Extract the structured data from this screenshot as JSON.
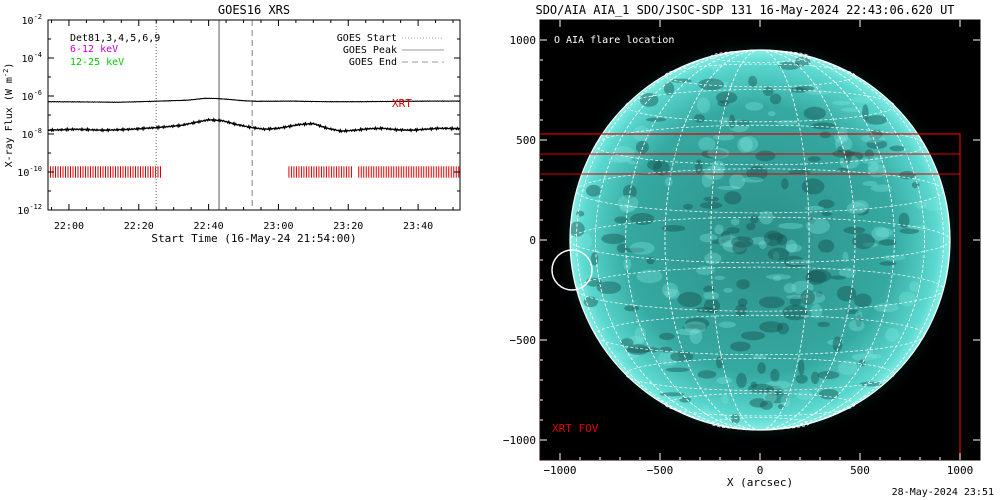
{
  "left_chart": {
    "title": "GOES16 XRS",
    "ylabel": "X-ray Flux (W m",
    "ylabel_sup": "-2",
    "ylabel_close": ")",
    "xlabel": "Start Time (16-May-24 21:54:00)",
    "y_ticks": [
      {
        "base": "10",
        "exp": "-2",
        "value": -2
      },
      {
        "base": "10",
        "exp": "-4",
        "value": -4
      },
      {
        "base": "10",
        "exp": "-6",
        "value": -6
      },
      {
        "base": "10",
        "exp": "-8",
        "value": -8
      },
      {
        "base": "10",
        "exp": "-10",
        "value": -10
      },
      {
        "base": "10",
        "exp": "-12",
        "value": -12
      }
    ],
    "x_ticks": [
      "22:00",
      "22:20",
      "22:40",
      "23:00",
      "23:20",
      "23:40"
    ],
    "labels_topleft": [
      {
        "text": "Det81,3,4,5,6,9",
        "color": "#000000"
      },
      {
        "text": "6-12 keV",
        "color": "#cc00cc"
      },
      {
        "text": "12-25 keV",
        "color": "#00cc00"
      }
    ],
    "legend": [
      {
        "text": "GOES Start",
        "style": "dotted"
      },
      {
        "text": "GOES Peak",
        "style": "solid"
      },
      {
        "text": "GOES End",
        "style": "dashed"
      }
    ],
    "xrt_label": "XRT",
    "colors": {
      "xrt": "#dd0000",
      "vline": "#aaaaaa"
    }
  },
  "chart_data": [
    {
      "type": "line",
      "title": "GOES16 XRS",
      "xlabel": "Start Time (16-May-24 21:54:00)",
      "ylabel": "X-ray Flux (W m-2)",
      "y_scale": "log",
      "xlim_minutes_after_start": [
        0,
        118
      ],
      "ylim_log10": [
        -12,
        -2
      ],
      "series": [
        {
          "x_minutes": [
            0,
            10,
            20,
            30,
            40,
            45,
            48,
            52,
            56,
            60,
            70,
            80,
            90,
            100,
            110,
            118
          ],
          "log10_flux": [
            -6.3,
            -6.31,
            -6.33,
            -6.28,
            -6.22,
            -6.12,
            -6.13,
            -6.18,
            -6.25,
            -6.28,
            -6.27,
            -6.3,
            -6.3,
            -6.28,
            -6.27,
            -6.27
          ]
        },
        {
          "x_minutes": [
            0,
            8,
            16,
            24,
            32,
            38,
            42,
            46,
            50,
            54,
            58,
            62,
            66,
            72,
            76,
            80,
            84,
            88,
            92,
            96,
            100,
            104,
            108,
            112,
            118
          ],
          "log10_flux": [
            -7.8,
            -7.75,
            -7.8,
            -7.75,
            -7.65,
            -7.55,
            -7.4,
            -7.25,
            -7.3,
            -7.5,
            -7.65,
            -7.75,
            -7.7,
            -7.5,
            -7.45,
            -7.7,
            -7.85,
            -7.8,
            -7.72,
            -7.7,
            -7.78,
            -7.8,
            -7.75,
            -7.7,
            -7.72
          ]
        }
      ],
      "vertical_lines": [
        {
          "name": "GOES Start",
          "x_minutes": 31,
          "style": "dotted"
        },
        {
          "name": "GOES Peak",
          "x_minutes": 49,
          "style": "solid"
        },
        {
          "name": "GOES End",
          "x_minutes": 58.5,
          "style": "dashed"
        }
      ],
      "xrt_intervals": [
        [
          0,
          32.5
        ],
        [
          69,
          87
        ],
        [
          89,
          118
        ]
      ],
      "xrt_log10_range": [
        -10.3,
        -9.7
      ],
      "grid": false
    },
    {
      "type": "image",
      "title": "SDO/AIA AIA_1 SDO/JSOC-SDP 131 16-May-2024 22:43:06.620 UT",
      "xlabel": "X (arcsec)",
      "ylabel": "",
      "xlim": [
        -1100,
        1100
      ],
      "ylim": [
        -1100,
        1100
      ],
      "solar_radius_arcsec": 950,
      "flare_location": {
        "x": -940,
        "y": -150,
        "radius": 100
      },
      "xrt_fov": {
        "x": [
          -1100,
          1000
        ],
        "y": [
          -1100,
          530
        ]
      },
      "xrt_fov_strip": {
        "y": [
          330,
          430
        ]
      },
      "x_ticks": [
        -1000,
        -500,
        0,
        500,
        1000
      ],
      "y_ticks": [
        1000,
        500,
        0,
        -500,
        -1000
      ],
      "grid": true
    }
  ],
  "right_chart": {
    "title": "SDO/AIA AIA_1 SDO/JSOC-SDP 131 16-May-2024 22:43:06.620 UT",
    "xlabel": "X (arcsec)",
    "x_ticks": [
      "−1000",
      "−500",
      "0",
      "500",
      "1000"
    ],
    "y_ticks": [
      "1000",
      "500",
      "0",
      "−500",
      "−1000"
    ],
    "flare_legend": "O AIA flare location",
    "xrt_fov_label": "XRT FOV",
    "colors": {
      "sun": "#3fc6bc",
      "fov": "#dd0000"
    }
  },
  "stamp": "28-May-2024 23:51"
}
